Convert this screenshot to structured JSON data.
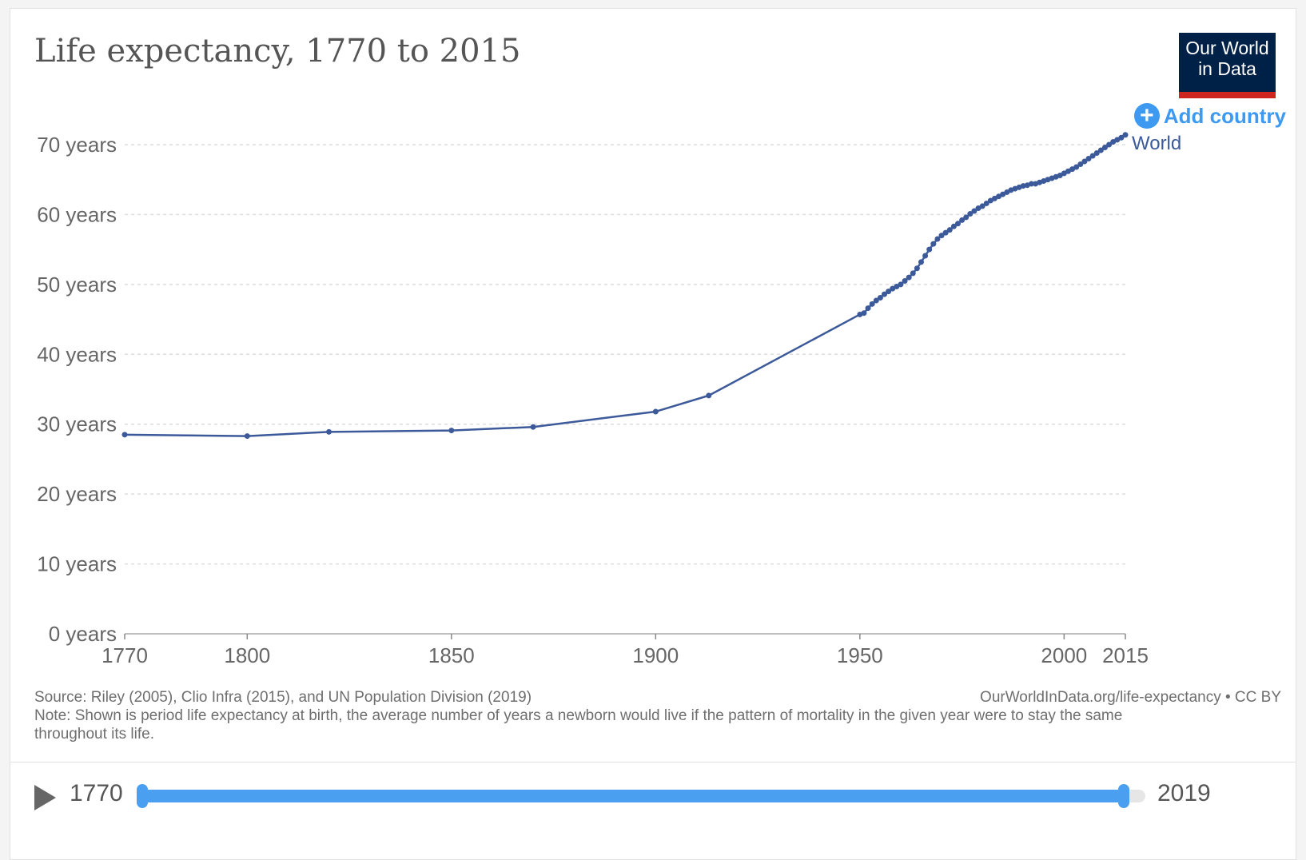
{
  "title": "Life expectancy, 1770 to 2015",
  "logo": {
    "line1": "Our World",
    "line2": "in Data"
  },
  "add_country": {
    "label": "Add country",
    "icon": "plus-circle-icon"
  },
  "colors": {
    "series": "#3c5a9a",
    "accent": "#3d9af0",
    "logo_bg": "#002147",
    "logo_bar": "#ce261e",
    "grid": "#dddddd",
    "text": "#555555"
  },
  "chart_data": {
    "type": "line",
    "title": "Life expectancy, 1770 to 2015",
    "xlabel": "",
    "ylabel": "",
    "xlim": [
      1770,
      2015
    ],
    "ylim": [
      0,
      70
    ],
    "x_ticks": [
      {
        "value": 1770,
        "label": "1770"
      },
      {
        "value": 1800,
        "label": "1800"
      },
      {
        "value": 1850,
        "label": "1850"
      },
      {
        "value": 1900,
        "label": "1900"
      },
      {
        "value": 1950,
        "label": "1950"
      },
      {
        "value": 2000,
        "label": "2000"
      },
      {
        "value": 2015,
        "label": "2015"
      }
    ],
    "y_ticks": [
      {
        "value": 0,
        "label": "0 years"
      },
      {
        "value": 10,
        "label": "10 years"
      },
      {
        "value": 20,
        "label": "20 years"
      },
      {
        "value": 30,
        "label": "30 years"
      },
      {
        "value": 40,
        "label": "40 years"
      },
      {
        "value": 50,
        "label": "50 years"
      },
      {
        "value": 60,
        "label": "60 years"
      },
      {
        "value": 70,
        "label": "70 years"
      }
    ],
    "grid": true,
    "series": [
      {
        "name": "World",
        "color": "#3c5a9a",
        "points": [
          [
            1770,
            28.5
          ],
          [
            1800,
            28.3
          ],
          [
            1820,
            28.9
          ],
          [
            1850,
            29.1
          ],
          [
            1870,
            29.6
          ],
          [
            1900,
            31.8
          ],
          [
            1913,
            34.1
          ],
          [
            1950,
            45.7
          ],
          [
            1951,
            45.9
          ],
          [
            1952,
            46.6
          ],
          [
            1953,
            47.2
          ],
          [
            1954,
            47.7
          ],
          [
            1955,
            48.1
          ],
          [
            1956,
            48.6
          ],
          [
            1957,
            49.0
          ],
          [
            1958,
            49.4
          ],
          [
            1959,
            49.7
          ],
          [
            1960,
            50.0
          ],
          [
            1961,
            50.5
          ],
          [
            1962,
            51.0
          ],
          [
            1963,
            51.6
          ],
          [
            1964,
            52.3
          ],
          [
            1965,
            53.2
          ],
          [
            1966,
            54.1
          ],
          [
            1967,
            55.0
          ],
          [
            1968,
            55.8
          ],
          [
            1969,
            56.5
          ],
          [
            1970,
            57.0
          ],
          [
            1971,
            57.4
          ],
          [
            1972,
            57.8
          ],
          [
            1973,
            58.3
          ],
          [
            1974,
            58.7
          ],
          [
            1975,
            59.2
          ],
          [
            1976,
            59.6
          ],
          [
            1977,
            60.1
          ],
          [
            1978,
            60.5
          ],
          [
            1979,
            60.9
          ],
          [
            1980,
            61.2
          ],
          [
            1981,
            61.6
          ],
          [
            1982,
            62.0
          ],
          [
            1983,
            62.3
          ],
          [
            1984,
            62.6
          ],
          [
            1985,
            62.9
          ],
          [
            1986,
            63.2
          ],
          [
            1987,
            63.5
          ],
          [
            1988,
            63.7
          ],
          [
            1989,
            63.9
          ],
          [
            1990,
            64.1
          ],
          [
            1991,
            64.2
          ],
          [
            1992,
            64.4
          ],
          [
            1993,
            64.4
          ],
          [
            1994,
            64.6
          ],
          [
            1995,
            64.8
          ],
          [
            1996,
            65.0
          ],
          [
            1997,
            65.2
          ],
          [
            1998,
            65.4
          ],
          [
            1999,
            65.6
          ],
          [
            2000,
            65.9
          ],
          [
            2001,
            66.2
          ],
          [
            2002,
            66.5
          ],
          [
            2003,
            66.8
          ],
          [
            2004,
            67.2
          ],
          [
            2005,
            67.6
          ],
          [
            2006,
            68.0
          ],
          [
            2007,
            68.4
          ],
          [
            2008,
            68.8
          ],
          [
            2009,
            69.2
          ],
          [
            2010,
            69.6
          ],
          [
            2011,
            70.0
          ],
          [
            2012,
            70.4
          ],
          [
            2013,
            70.7
          ],
          [
            2014,
            71.0
          ],
          [
            2015,
            71.4
          ]
        ]
      }
    ]
  },
  "footer": {
    "source": "Source: Riley (2005), Clio Infra (2015), and UN Population Division (2019)",
    "license": "OurWorldInData.org/life-expectancy • CC BY",
    "note": "Note: Shown is period life expectancy at birth, the average number of years a newborn would live if the pattern of mortality in the given year were to stay the same throughout its life."
  },
  "timeline": {
    "play_icon": "play-icon",
    "start_label": "1770",
    "end_label": "2019",
    "selected_start": 1770,
    "selected_end": 2015,
    "min_year": 1770,
    "max_year": 2019
  }
}
